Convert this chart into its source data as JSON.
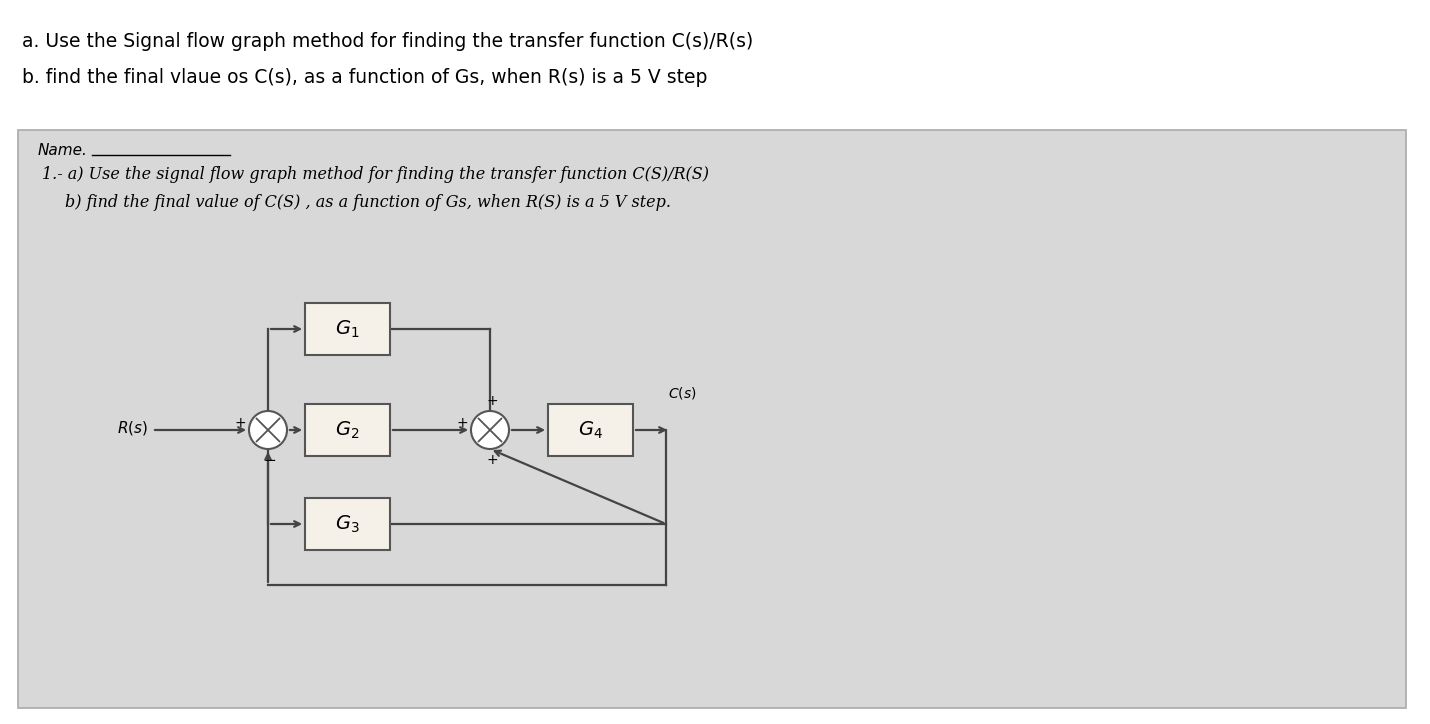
{
  "top_text_a": "a. Use the Signal flow graph method for finding the transfer function C(s)/R(s)",
  "top_text_b": "b. find the final vlaue os C(s), as a function of Gs, when R(s) is a 5 V step",
  "card_name_label": "Name.",
  "card_line1": "1.- a) Use the signal flow graph method for finding the transfer function C(S)/R(S)",
  "card_line2": "       b) find the final value of C(S) , as a function of Gs, when R(S) is a 5 V step.",
  "block_G1": "$G_1$",
  "block_G2": "$G_2$",
  "block_G3": "$G_3$",
  "block_G4": "$G_4$",
  "label_Rs": "$R(s)$",
  "label_Cs": "$C(s)$",
  "white": "#ffffff",
  "black": "#000000",
  "card_color": "#d8d8d8",
  "card_edge": "#aaaaaa",
  "block_fill": "#f5f0e8",
  "block_edge": "#555555",
  "line_color": "#444444"
}
